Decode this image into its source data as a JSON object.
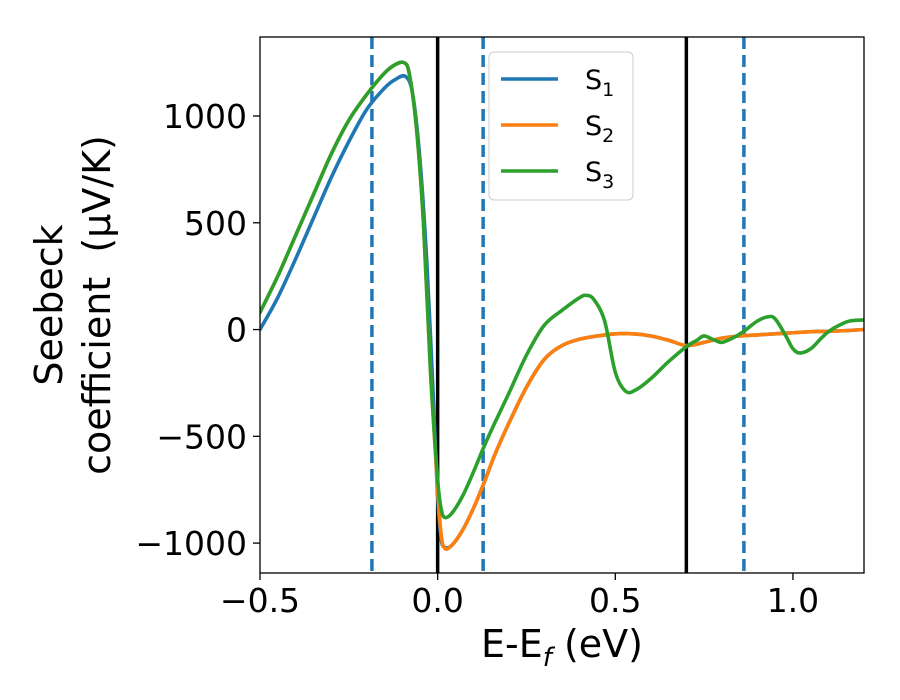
{
  "chart_data": {
    "type": "line",
    "title": "",
    "xlabel": "E-E_f (eV)",
    "xlabel_main": "E-E",
    "xlabel_sub": "f",
    "xlabel_tail": " (eV)",
    "ylabel": "Seebeck coefficient (μV/K)",
    "ylabel_line1": "Seebeck",
    "ylabel_line2": "coefficient  (μV/K)",
    "xlim": [
      -0.5,
      1.2
    ],
    "ylim": [
      -1140,
      1370
    ],
    "x_ticks": [
      -0.5,
      0.0,
      0.5,
      1.0
    ],
    "x_tick_labels": [
      "−0.5",
      "0.0",
      "0.5",
      "1.0"
    ],
    "y_ticks": [
      -1000,
      -500,
      0,
      500,
      1000
    ],
    "y_tick_labels": [
      "−1000",
      "−500",
      "0",
      "500",
      "1000"
    ],
    "grid": false,
    "legend_position": "top-center",
    "solid_vlines": [
      0.0,
      0.7
    ],
    "dashed_vlines": [
      -0.185,
      0.128,
      0.862
    ],
    "colors": {
      "S1": "#1f77b4",
      "S2": "#ff7f0e",
      "S3": "#2ca02c",
      "vline_solid": "#000000",
      "vline_dashed": "#1f77b4"
    },
    "series": [
      {
        "name": "S1",
        "label_main": "S",
        "label_sub": "1",
        "color": "#1f77b4",
        "points": [
          [
            -0.5,
            0
          ],
          [
            -0.45,
            150
          ],
          [
            -0.4,
            330
          ],
          [
            -0.35,
            520
          ],
          [
            -0.3,
            710
          ],
          [
            -0.25,
            880
          ],
          [
            -0.2,
            1030
          ],
          [
            -0.15,
            1130
          ],
          [
            -0.12,
            1170
          ],
          [
            -0.09,
            1185
          ],
          [
            -0.07,
            1100
          ],
          [
            -0.05,
            800
          ],
          [
            -0.03,
            300
          ],
          [
            -0.01,
            -400
          ],
          [
            0.0,
            -780
          ],
          [
            0.01,
            -980
          ],
          [
            0.02,
            -1020
          ],
          [
            0.04,
            -1010
          ],
          [
            0.07,
            -940
          ],
          [
            0.1,
            -840
          ],
          [
            0.13,
            -720
          ],
          [
            0.16,
            -590
          ],
          [
            0.2,
            -440
          ],
          [
            0.25,
            -270
          ],
          [
            0.3,
            -140
          ],
          [
            0.35,
            -75
          ],
          [
            0.4,
            -45
          ],
          [
            0.45,
            -30
          ],
          [
            0.5,
            -20
          ],
          [
            0.55,
            -20
          ],
          [
            0.6,
            -30
          ],
          [
            0.65,
            -50
          ],
          [
            0.7,
            -75
          ],
          [
            0.75,
            -60
          ],
          [
            0.8,
            -40
          ],
          [
            0.85,
            -30
          ],
          [
            0.9,
            -25
          ],
          [
            0.95,
            -20
          ],
          [
            1.0,
            -15
          ],
          [
            1.05,
            -10
          ],
          [
            1.1,
            -8
          ],
          [
            1.15,
            -5
          ],
          [
            1.2,
            0
          ]
        ]
      },
      {
        "name": "S2",
        "label_main": "S",
        "label_sub": "2",
        "color": "#ff7f0e",
        "points": [
          [
            -0.5,
            80
          ],
          [
            -0.45,
            250
          ],
          [
            -0.4,
            440
          ],
          [
            -0.35,
            630
          ],
          [
            -0.3,
            820
          ],
          [
            -0.25,
            980
          ],
          [
            -0.2,
            1100
          ],
          [
            -0.15,
            1200
          ],
          [
            -0.12,
            1240
          ],
          [
            -0.095,
            1250
          ],
          [
            -0.08,
            1200
          ],
          [
            -0.06,
            950
          ],
          [
            -0.04,
            500
          ],
          [
            -0.02,
            -200
          ],
          [
            0.0,
            -750
          ],
          [
            0.01,
            -960
          ],
          [
            0.02,
            -1025
          ],
          [
            0.04,
            -1010
          ],
          [
            0.07,
            -940
          ],
          [
            0.1,
            -840
          ],
          [
            0.13,
            -720
          ],
          [
            0.16,
            -590
          ],
          [
            0.2,
            -440
          ],
          [
            0.25,
            -270
          ],
          [
            0.3,
            -140
          ],
          [
            0.35,
            -75
          ],
          [
            0.4,
            -45
          ],
          [
            0.45,
            -30
          ],
          [
            0.5,
            -20
          ],
          [
            0.55,
            -20
          ],
          [
            0.6,
            -30
          ],
          [
            0.65,
            -50
          ],
          [
            0.7,
            -75
          ],
          [
            0.75,
            -60
          ],
          [
            0.8,
            -40
          ],
          [
            0.85,
            -30
          ],
          [
            0.9,
            -25
          ],
          [
            0.95,
            -20
          ],
          [
            1.0,
            -15
          ],
          [
            1.05,
            -10
          ],
          [
            1.1,
            -8
          ],
          [
            1.15,
            -5
          ],
          [
            1.2,
            0
          ]
        ]
      },
      {
        "name": "S3",
        "label_main": "S",
        "label_sub": "3",
        "color": "#2ca02c",
        "points": [
          [
            -0.5,
            80
          ],
          [
            -0.45,
            250
          ],
          [
            -0.4,
            440
          ],
          [
            -0.35,
            630
          ],
          [
            -0.3,
            820
          ],
          [
            -0.25,
            980
          ],
          [
            -0.2,
            1100
          ],
          [
            -0.15,
            1200
          ],
          [
            -0.12,
            1240
          ],
          [
            -0.095,
            1250
          ],
          [
            -0.08,
            1200
          ],
          [
            -0.06,
            950
          ],
          [
            -0.04,
            500
          ],
          [
            -0.02,
            -200
          ],
          [
            0.0,
            -700
          ],
          [
            0.01,
            -840
          ],
          [
            0.02,
            -880
          ],
          [
            0.04,
            -860
          ],
          [
            0.07,
            -780
          ],
          [
            0.1,
            -670
          ],
          [
            0.13,
            -550
          ],
          [
            0.16,
            -440
          ],
          [
            0.2,
            -300
          ],
          [
            0.25,
            -120
          ],
          [
            0.3,
            20
          ],
          [
            0.35,
            90
          ],
          [
            0.4,
            150
          ],
          [
            0.42,
            160
          ],
          [
            0.44,
            140
          ],
          [
            0.47,
            40
          ],
          [
            0.5,
            -200
          ],
          [
            0.53,
            -290
          ],
          [
            0.56,
            -280
          ],
          [
            0.6,
            -230
          ],
          [
            0.65,
            -150
          ],
          [
            0.7,
            -80
          ],
          [
            0.73,
            -50
          ],
          [
            0.75,
            -30
          ],
          [
            0.78,
            -50
          ],
          [
            0.8,
            -60
          ],
          [
            0.83,
            -40
          ],
          [
            0.86,
            -10
          ],
          [
            0.9,
            40
          ],
          [
            0.93,
            60
          ],
          [
            0.95,
            50
          ],
          [
            0.98,
            -30
          ],
          [
            1.0,
            -90
          ],
          [
            1.02,
            -110
          ],
          [
            1.05,
            -90
          ],
          [
            1.08,
            -40
          ],
          [
            1.1,
            -10
          ],
          [
            1.13,
            20
          ],
          [
            1.16,
            40
          ],
          [
            1.2,
            45
          ]
        ]
      }
    ]
  }
}
